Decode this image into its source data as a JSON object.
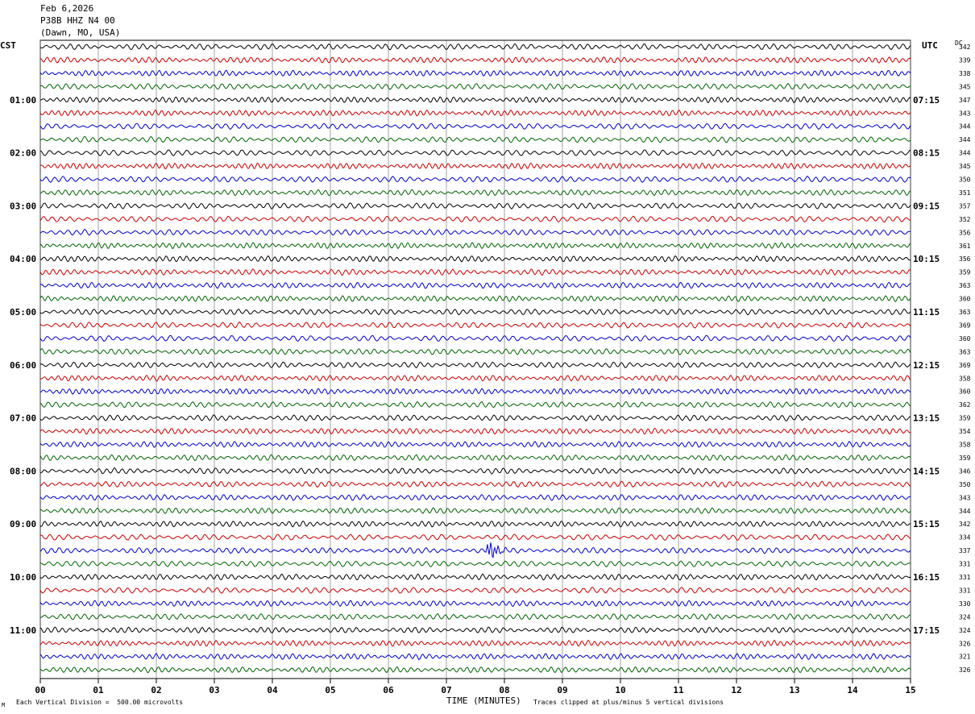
{
  "header": {
    "date": "Feb 6,2026",
    "station": "P38B HHZ N4 00",
    "location": "(Dawn, MO, USA)"
  },
  "left_timezone": "CST",
  "right_timezone": "UTC",
  "dc_label": "DC",
  "footer": {
    "scale_note": "Each Vertical Division =  500.00 microvolts",
    "xlabel": "TIME (MINUTES)",
    "clip_note": "Traces clipped at plus/minus 5 vertical divisions",
    "corner_mark": "M"
  },
  "chart_data": {
    "type": "line",
    "subtype": "helicorder",
    "x_ticks": [
      "00",
      "01",
      "02",
      "03",
      "04",
      "05",
      "06",
      "07",
      "08",
      "09",
      "10",
      "11",
      "12",
      "13",
      "14",
      "15"
    ],
    "xlim": [
      0,
      15
    ],
    "grid": true,
    "trace_colors": [
      "#000000",
      "#cc0000",
      "#0000cc",
      "#006400"
    ],
    "left_hour_labels": [
      "01:00",
      "02:00",
      "03:00",
      "04:00",
      "05:00",
      "06:00",
      "07:00",
      "08:00",
      "09:00",
      "10:00",
      "11:00"
    ],
    "right_hour_labels": [
      "07:15",
      "08:15",
      "09:15",
      "10:15",
      "11:15",
      "12:15",
      "13:15",
      "14:15",
      "15:15",
      "16:15",
      "17:15"
    ],
    "dc_offsets": [
      "342",
      "339",
      "338",
      "345",
      "347",
      "343",
      "344",
      "344",
      "344",
      "345",
      "350",
      "351",
      "357",
      "352",
      "356",
      "361",
      "356",
      "359",
      "363",
      "360",
      "363",
      "369",
      "360",
      "363",
      "369",
      "358",
      "360",
      "362",
      "359",
      "354",
      "358",
      "359",
      "346",
      "350",
      "343",
      "344",
      "342",
      "334",
      "337",
      "331",
      "331",
      "331",
      "330",
      "324",
      "324",
      "326",
      "321",
      "326"
    ],
    "events": [
      {
        "trace_index": 38,
        "minute": 7.8,
        "description": "small seismic event burst"
      }
    ]
  }
}
